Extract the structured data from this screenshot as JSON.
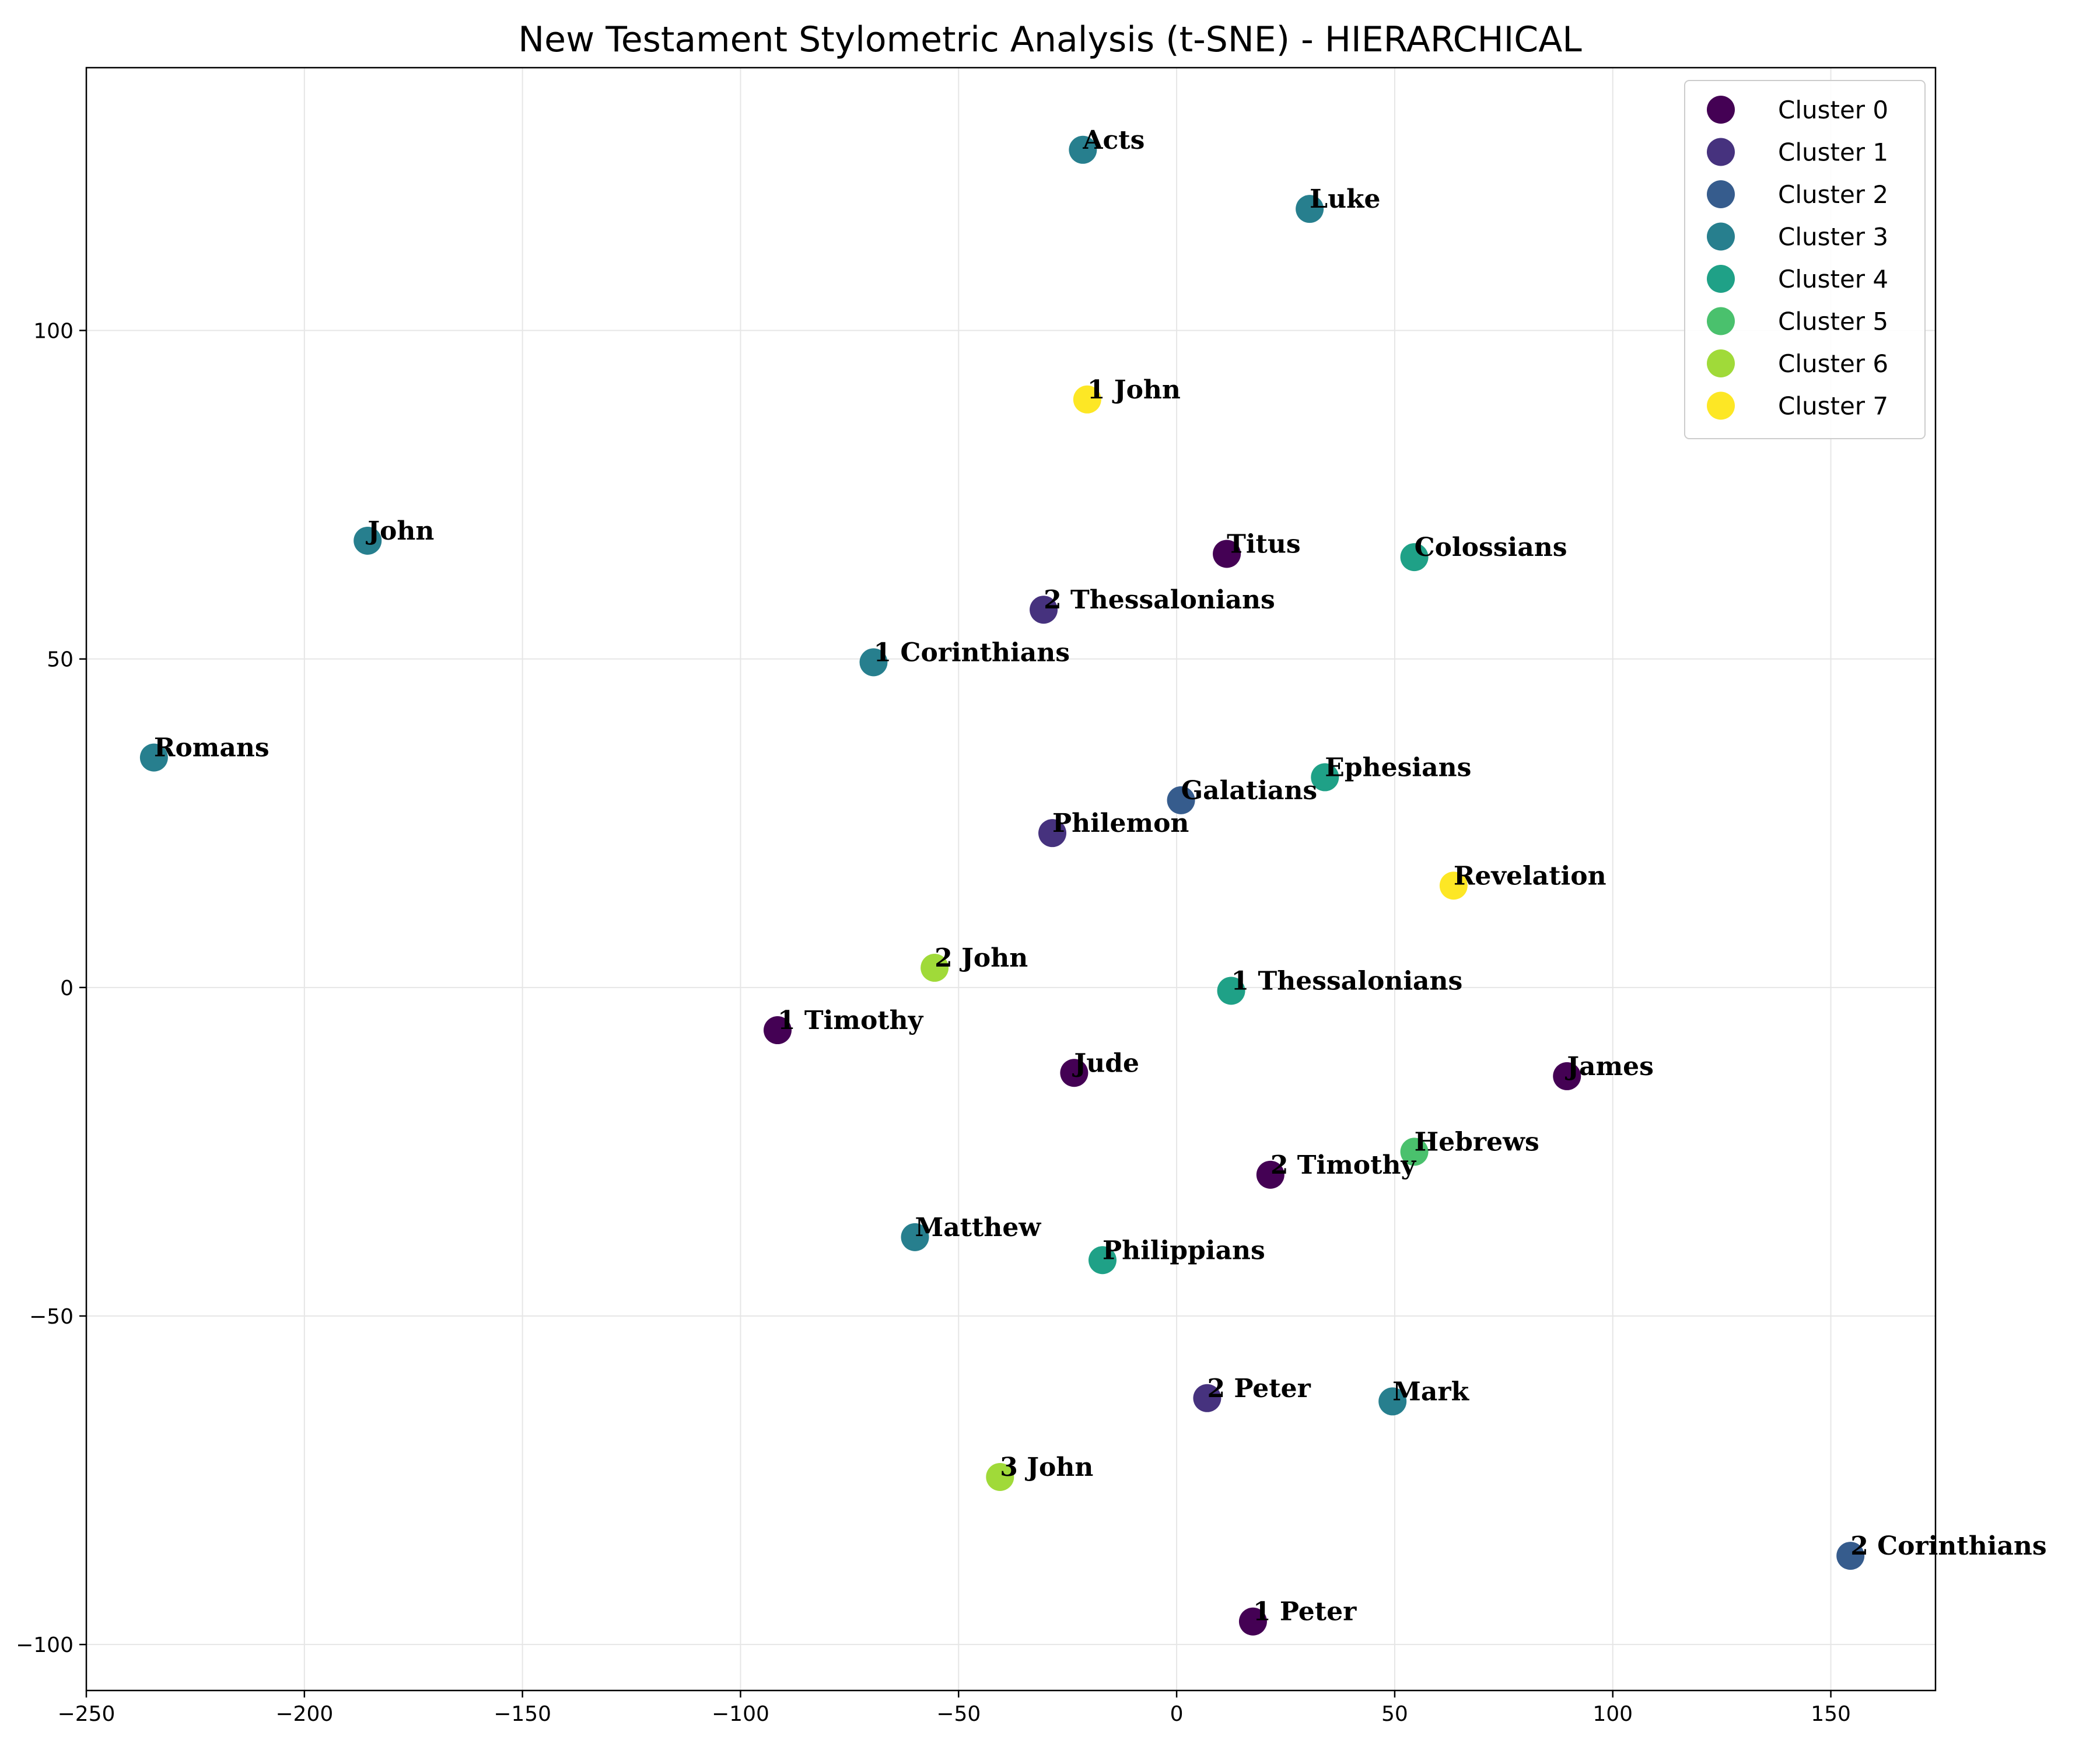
{
  "chart_data": {
    "type": "scatter",
    "title": "New Testament Stylometric Analysis (t-SNE) - HIERARCHICAL",
    "xlabel": "",
    "ylabel": "",
    "xlim": [
      -250,
      174
    ],
    "ylim": [
      -107,
      140
    ],
    "x_ticks": [
      -250,
      -200,
      -150,
      -100,
      -50,
      0,
      50,
      100,
      150
    ],
    "y_ticks": [
      -100,
      -50,
      0,
      50,
      100
    ],
    "grid": true,
    "legend_position": "top-right",
    "clusters": [
      {
        "name": "Cluster 0",
        "color": "#440154"
      },
      {
        "name": "Cluster 1",
        "color": "#46327e"
      },
      {
        "name": "Cluster 2",
        "color": "#365c8d"
      },
      {
        "name": "Cluster 3",
        "color": "#277f8e"
      },
      {
        "name": "Cluster 4",
        "color": "#1fa187"
      },
      {
        "name": "Cluster 5",
        "color": "#4ac16d"
      },
      {
        "name": "Cluster 6",
        "color": "#a0da39"
      },
      {
        "name": "Cluster 7",
        "color": "#fde725"
      }
    ],
    "points": [
      {
        "label": "Acts",
        "x": -21.5,
        "y": 127.5,
        "cluster": 3
      },
      {
        "label": "Luke",
        "x": 30.5,
        "y": 118.5,
        "cluster": 3
      },
      {
        "label": "1 John",
        "x": -20.5,
        "y": 89.5,
        "cluster": 7
      },
      {
        "label": "John",
        "x": -185.5,
        "y": 68.0,
        "cluster": 3
      },
      {
        "label": "Titus",
        "x": 11.5,
        "y": 66.0,
        "cluster": 0
      },
      {
        "label": "Colossians",
        "x": 54.5,
        "y": 65.5,
        "cluster": 4
      },
      {
        "label": "2 Thessalonians",
        "x": -30.5,
        "y": 57.5,
        "cluster": 1
      },
      {
        "label": "1 Corinthians",
        "x": -69.5,
        "y": 49.5,
        "cluster": 3
      },
      {
        "label": "Romans",
        "x": -234.5,
        "y": 35.0,
        "cluster": 3
      },
      {
        "label": "Ephesians",
        "x": 34.0,
        "y": 32.0,
        "cluster": 4
      },
      {
        "label": "Galatians",
        "x": 1.0,
        "y": 28.5,
        "cluster": 2
      },
      {
        "label": "Philemon",
        "x": -28.5,
        "y": 23.5,
        "cluster": 1
      },
      {
        "label": "Revelation",
        "x": 63.5,
        "y": 15.5,
        "cluster": 7
      },
      {
        "label": "2 John",
        "x": -55.5,
        "y": 3.0,
        "cluster": 6
      },
      {
        "label": "1 Thessalonians",
        "x": 12.5,
        "y": -0.5,
        "cluster": 4
      },
      {
        "label": "1 Timothy",
        "x": -91.5,
        "y": -6.5,
        "cluster": 0
      },
      {
        "label": "Jude",
        "x": -23.5,
        "y": -13.0,
        "cluster": 0
      },
      {
        "label": "James",
        "x": 89.5,
        "y": -13.5,
        "cluster": 0
      },
      {
        "label": "Hebrews",
        "x": 54.5,
        "y": -25.0,
        "cluster": 5
      },
      {
        "label": "2 Timothy",
        "x": 21.5,
        "y": -28.5,
        "cluster": 0
      },
      {
        "label": "Matthew",
        "x": -60.0,
        "y": -38.0,
        "cluster": 3
      },
      {
        "label": "Philippians",
        "x": -17.0,
        "y": -41.5,
        "cluster": 4
      },
      {
        "label": "2 Peter",
        "x": 7.0,
        "y": -62.5,
        "cluster": 1
      },
      {
        "label": "Mark",
        "x": 49.5,
        "y": -63.0,
        "cluster": 3
      },
      {
        "label": "3 John",
        "x": -40.5,
        "y": -74.5,
        "cluster": 6
      },
      {
        "label": "2 Corinthians",
        "x": 154.5,
        "y": -86.5,
        "cluster": 2
      },
      {
        "label": "1 Peter",
        "x": 17.5,
        "y": -96.5,
        "cluster": 0
      }
    ]
  }
}
